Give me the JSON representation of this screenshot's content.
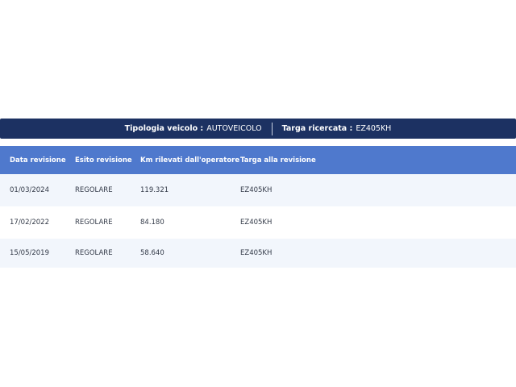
{
  "summary": {
    "vehicle_type_label": "Tipologia veicolo :",
    "vehicle_type_value": "AUTOVEICOLO",
    "plate_label": "Targa ricercata :",
    "plate_value": "EZ405KH"
  },
  "table": {
    "headers": [
      "Data revisione",
      "Esito revisione",
      "Km rilevati dall'operatore",
      "Targa alla revisione"
    ],
    "rows": [
      [
        "01/03/2024",
        "REGOLARE",
        "119.321",
        "EZ405KH"
      ],
      [
        "17/02/2022",
        "REGOLARE",
        "84.180",
        "EZ405KH"
      ],
      [
        "15/05/2019",
        "REGOLARE",
        "58.640",
        "EZ405KH"
      ]
    ]
  },
  "colors": {
    "summary_bg": "#1c3162",
    "header_bg": "#4f79cd",
    "row_alt_bg": "#f2f6fc"
  }
}
